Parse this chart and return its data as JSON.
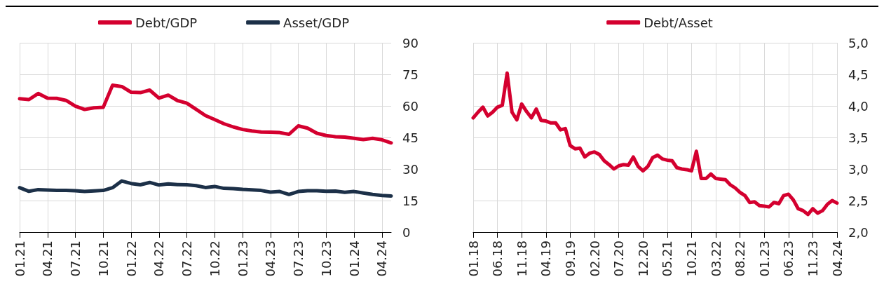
{
  "chart_data": [
    {
      "type": "line",
      "categories": [
        "01.21",
        null,
        null,
        "04.21",
        null,
        null,
        "07.21",
        null,
        null,
        "10.21",
        null,
        null,
        "01.22",
        null,
        null,
        "04.22",
        null,
        null,
        "07.22",
        null,
        null,
        "10.22",
        null,
        null,
        "01.23",
        null,
        null,
        "04.23",
        null,
        null,
        "07.23",
        null,
        null,
        "10.23",
        null,
        null,
        "01.24",
        null,
        null,
        "04.24",
        null
      ],
      "series": [
        {
          "name": "Debt/GDP",
          "color": "#d4002f",
          "values": [
            63.4,
            63.0,
            65.9,
            63.7,
            63.6,
            62.6,
            59.9,
            58.3,
            59.1,
            59.3,
            69.8,
            69.2,
            66.5,
            66.3,
            67.5,
            63.7,
            65.1,
            62.5,
            61.3,
            58.4,
            55.4,
            53.5,
            51.5,
            50.0,
            48.8,
            48.1,
            47.6,
            47.5,
            47.3,
            46.5,
            50.5,
            49.4,
            47.0,
            45.9,
            45.3,
            45.2,
            44.6,
            44.0,
            44.6,
            43.9,
            42.4
          ]
        },
        {
          "name": "Asset/GDP",
          "color": "#1c3048",
          "values": [
            21.1,
            19.4,
            20.2,
            20.0,
            19.8,
            19.8,
            19.7,
            19.3,
            19.6,
            19.8,
            21.1,
            24.3,
            23.1,
            22.5,
            23.6,
            22.4,
            22.9,
            22.6,
            22.5,
            22.1,
            21.2,
            21.7,
            20.8,
            20.7,
            20.3,
            20.1,
            19.8,
            19.0,
            19.3,
            17.9,
            19.3,
            19.7,
            19.7,
            19.4,
            19.5,
            18.9,
            19.3,
            18.6,
            17.9,
            17.4,
            17.2
          ]
        }
      ],
      "ylim": [
        0,
        90
      ],
      "yticks": [
        0,
        15,
        30,
        45,
        60,
        75,
        90
      ],
      "grid": true,
      "legend": "top",
      "marker": "none",
      "line_style": "solid"
    },
    {
      "type": "line",
      "categories": [
        "01.18",
        null,
        null,
        null,
        null,
        "06.18",
        null,
        null,
        null,
        null,
        "11.18",
        null,
        null,
        null,
        null,
        "04.19",
        null,
        null,
        null,
        null,
        "09.19",
        null,
        null,
        null,
        null,
        "02.20",
        null,
        null,
        null,
        null,
        "07.20",
        null,
        null,
        null,
        null,
        "12.20",
        null,
        null,
        null,
        null,
        "05.21",
        null,
        null,
        null,
        null,
        "10.21",
        null,
        null,
        null,
        null,
        "03.22",
        null,
        null,
        null,
        null,
        "08.22",
        null,
        null,
        null,
        null,
        "01.23",
        null,
        null,
        null,
        null,
        "06.23",
        null,
        null,
        null,
        null,
        "11.23",
        null,
        null,
        null,
        null,
        "04.24"
      ],
      "series": [
        {
          "name": "Debt/Asset",
          "color": "#d4002f",
          "values": [
            3.81,
            3.9,
            3.98,
            3.84,
            3.9,
            3.98,
            4.01,
            4.52,
            3.9,
            3.78,
            4.03,
            3.91,
            3.81,
            3.95,
            3.77,
            3.76,
            3.73,
            3.73,
            3.62,
            3.64,
            3.37,
            3.32,
            3.33,
            3.19,
            3.25,
            3.27,
            3.23,
            3.13,
            3.07,
            3.0,
            3.05,
            3.07,
            3.06,
            3.19,
            3.04,
            2.97,
            3.04,
            3.18,
            3.22,
            3.16,
            3.14,
            3.13,
            3.02,
            3.0,
            2.99,
            2.97,
            3.28,
            2.85,
            2.85,
            2.92,
            2.85,
            2.84,
            2.83,
            2.75,
            2.7,
            2.63,
            2.58,
            2.47,
            2.48,
            2.42,
            2.41,
            2.4,
            2.47,
            2.45,
            2.58,
            2.6,
            2.51,
            2.37,
            2.34,
            2.28,
            2.37,
            2.3,
            2.34,
            2.44,
            2.5,
            2.46
          ]
        }
      ],
      "ylim": [
        2,
        5
      ],
      "yticks": [
        {
          "value": 2,
          "label": "2,0"
        },
        {
          "value": 2.5,
          "label": "2,5"
        },
        {
          "value": 3,
          "label": "3,0"
        },
        {
          "value": 3.5,
          "label": "3,5"
        },
        {
          "value": 4,
          "label": "4,0"
        },
        {
          "value": 4.5,
          "label": "4,5"
        },
        {
          "value": 5,
          "label": "5,0"
        }
      ],
      "grid": true,
      "legend": "top",
      "marker": "none",
      "line_style": "solid"
    }
  ]
}
